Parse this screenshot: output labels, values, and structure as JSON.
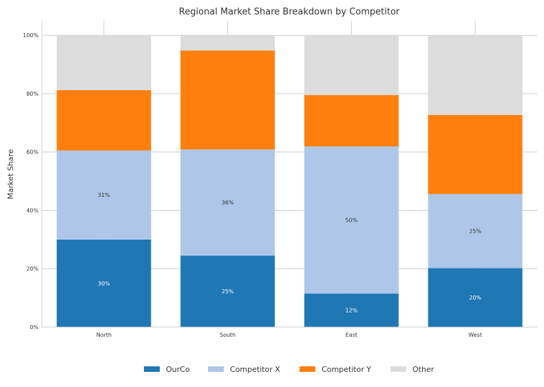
{
  "chart_data": {
    "type": "bar",
    "stacked": true,
    "title": "Regional Market Share Breakdown by Competitor",
    "xlabel": "",
    "ylabel": "Market Share",
    "ylim": [
      0,
      1.05
    ],
    "yticks": [
      0,
      0.2,
      0.4,
      0.6,
      0.8,
      1.0
    ],
    "ytick_labels": [
      "0%",
      "20%",
      "40%",
      "60%",
      "80%",
      "100%"
    ],
    "grid": true,
    "legend_position": "bottom",
    "categories": [
      "North",
      "South",
      "East",
      "West"
    ],
    "series": [
      {
        "name": "OurCo",
        "color": "#1f77b4",
        "values": [
          0.3,
          0.245,
          0.115,
          0.202
        ],
        "labels": [
          "30%",
          "25%",
          "12%",
          "20%"
        ],
        "label_color": "#ffffff"
      },
      {
        "name": "Competitor X",
        "color": "#aec7e8",
        "values": [
          0.305,
          0.364,
          0.504,
          0.254
        ],
        "labels": [
          "31%",
          "36%",
          "50%",
          "25%"
        ],
        "label_color": "#333333"
      },
      {
        "name": "Competitor Y",
        "color": "#ff7f0e",
        "values": [
          0.207,
          0.339,
          0.176,
          0.271
        ],
        "labels": null
      },
      {
        "name": "Other",
        "color": "#dcdcdc",
        "values": [
          0.188,
          0.052,
          0.205,
          0.273
        ],
        "labels": null
      }
    ]
  }
}
